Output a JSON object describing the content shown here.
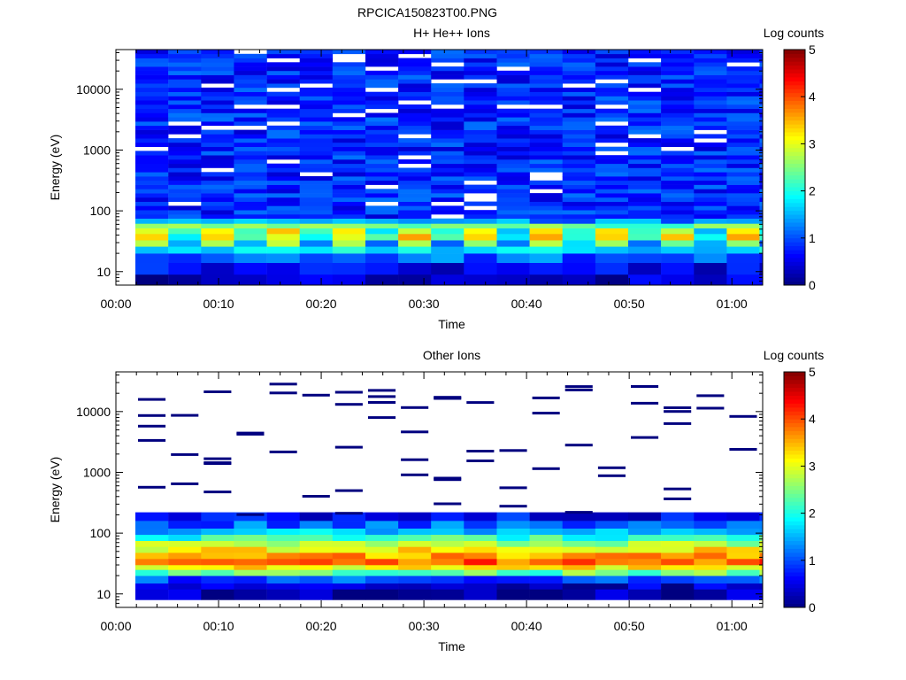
{
  "figure_title": "RPCICA150823T00.PNG",
  "chart_data": [
    {
      "type": "heatmap",
      "title": "H+ He++ Ions",
      "xlabel": "Time",
      "ylabel": "Energy (eV)",
      "yscale": "log",
      "ylim": [
        6,
        45000
      ],
      "xlim_minutes": [
        0,
        63
      ],
      "x_ticks": [
        "00:00",
        "00:10",
        "00:20",
        "00:30",
        "00:40",
        "00:50",
        "01:00"
      ],
      "y_ticks": [
        "10",
        "100",
        "1000",
        "10000"
      ],
      "colorbar": {
        "label": "Log counts",
        "range": [
          0,
          5
        ],
        "ticks": [
          "0",
          "1",
          "2",
          "3",
          "4",
          "5"
        ]
      },
      "time_bins_minutes": [
        1.9,
        5.1,
        8.3,
        11.5,
        14.7,
        17.9,
        21.1,
        24.3,
        27.5,
        30.7,
        33.9,
        37.1,
        40.3,
        43.5,
        46.7,
        49.9,
        53.1,
        56.3,
        59.5,
        62.7
      ],
      "band_profile": [
        {
          "e_low": 6,
          "e_high": 9,
          "level": 0.35
        },
        {
          "e_low": 9,
          "e_high": 14,
          "level": 0.6
        },
        {
          "e_low": 14,
          "e_high": 20,
          "level": 1.1
        },
        {
          "e_low": 20,
          "e_high": 26,
          "level": 1.8
        },
        {
          "e_low": 26,
          "e_high": 33,
          "level": 2.6
        },
        {
          "e_low": 33,
          "e_high": 42,
          "level": 3.3
        },
        {
          "e_low": 42,
          "e_high": 52,
          "level": 3.1
        },
        {
          "e_low": 52,
          "e_high": 62,
          "level": 2.4
        },
        {
          "e_low": 62,
          "e_high": 75,
          "level": 1.3
        },
        {
          "e_low": 75,
          "e_high": 45000,
          "level": 0.8
        }
      ]
    },
    {
      "type": "heatmap",
      "title": "Other Ions",
      "xlabel": "Time",
      "ylabel": "Energy (eV)",
      "yscale": "log",
      "ylim": [
        6,
        45000
      ],
      "xlim_minutes": [
        0,
        63
      ],
      "x_ticks": [
        "00:00",
        "00:10",
        "00:20",
        "00:30",
        "00:40",
        "00:50",
        "01:00"
      ],
      "y_ticks": [
        "10",
        "100",
        "1000",
        "10000"
      ],
      "colorbar": {
        "label": "Log counts",
        "range": [
          0,
          5
        ],
        "ticks": [
          "0",
          "1",
          "2",
          "3",
          "4",
          "5"
        ]
      },
      "time_bins_minutes": [
        1.9,
        5.1,
        8.3,
        11.5,
        14.7,
        17.9,
        21.1,
        24.3,
        27.5,
        30.7,
        33.9,
        37.1,
        40.3,
        43.5,
        46.7,
        49.9,
        53.1,
        56.3,
        59.5,
        62.7
      ],
      "band_profile": [
        {
          "e_low": 8,
          "e_high": 12,
          "level": 0.2
        },
        {
          "e_low": 12,
          "e_high": 15,
          "level": 0.4
        },
        {
          "e_low": 15,
          "e_high": 20,
          "level": 1.0
        },
        {
          "e_low": 20,
          "e_high": 25,
          "level": 2.4
        },
        {
          "e_low": 25,
          "e_high": 30,
          "level": 3.2
        },
        {
          "e_low": 30,
          "e_high": 38,
          "level": 3.9
        },
        {
          "e_low": 38,
          "e_high": 48,
          "level": 3.6
        },
        {
          "e_low": 48,
          "e_high": 60,
          "level": 3.2
        },
        {
          "e_low": 60,
          "e_high": 75,
          "level": 2.7
        },
        {
          "e_low": 75,
          "e_high": 95,
          "level": 2.1
        },
        {
          "e_low": 95,
          "e_high": 120,
          "level": 1.6
        },
        {
          "e_low": 120,
          "e_high": 160,
          "level": 1.1
        },
        {
          "e_low": 160,
          "e_high": 220,
          "level": 0.6
        }
      ]
    }
  ]
}
